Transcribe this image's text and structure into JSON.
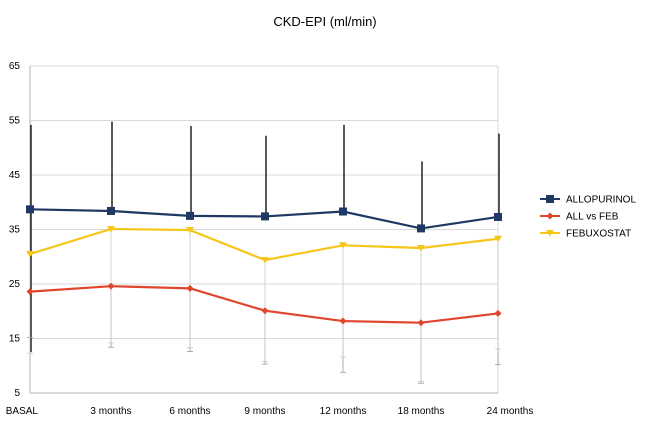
{
  "chart_data": {
    "type": "line",
    "title": "CKD-EPI (ml/min)",
    "xlabel": "",
    "ylabel": "",
    "categories": [
      "BASAL",
      "3 months",
      "6  months",
      "9  months",
      "12  months",
      "18 months",
      "24 months"
    ],
    "ylim": [
      5,
      65
    ],
    "yticks": [
      5,
      15,
      25,
      35,
      45,
      55,
      65
    ],
    "grid": true,
    "legend": "right",
    "series": [
      {
        "name": "ALLOPURINOL",
        "color": "#1f3864",
        "marker": "square",
        "values": [
          38.7,
          38.4,
          37.5,
          37.4,
          38.3,
          35.2,
          37.3
        ],
        "error_high": [
          54.2,
          54.8,
          54.0,
          52.2,
          54.2,
          47.5,
          52.6
        ],
        "error_low": [
          12.5,
          null,
          null,
          null,
          null,
          null,
          null
        ]
      },
      {
        "name": "ALL vs FEB",
        "color": "#e0462e",
        "marker": "diamond",
        "values": [
          23.6,
          24.6,
          24.2,
          20.1,
          18.2,
          17.9,
          19.6
        ],
        "error_high": [
          null,
          null,
          null,
          null,
          null,
          null,
          null
        ],
        "error_low": [
          15.2,
          13.4,
          12.6,
          10.3,
          8.8,
          6.8,
          10.2
        ]
      },
      {
        "name": "FEBUXOSTAT",
        "color": "#f5c518",
        "marker": "triangle-down",
        "values": [
          30.5,
          35.1,
          34.9,
          29.4,
          32.1,
          31.6,
          33.3
        ],
        "error_high": [
          null,
          null,
          null,
          null,
          null,
          null,
          null
        ],
        "error_low": [
          12.3,
          14.2,
          13.3,
          10.8,
          11.6,
          7.1,
          13.1
        ]
      }
    ]
  }
}
